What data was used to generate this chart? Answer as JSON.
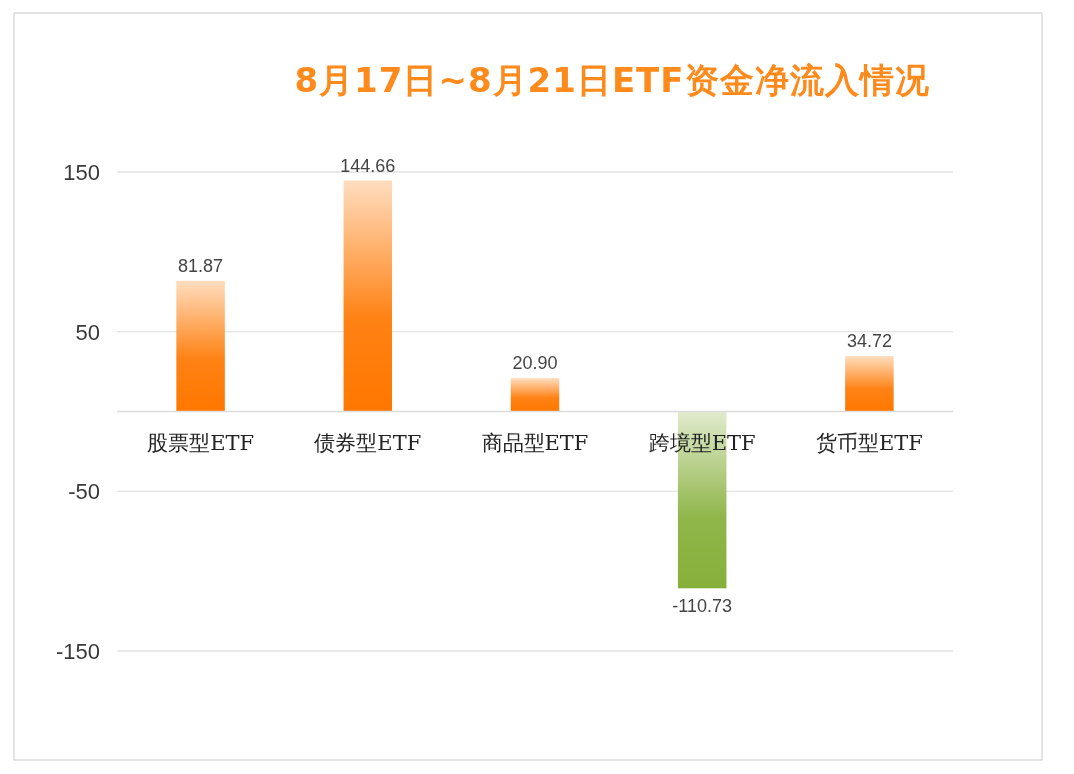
{
  "chart_data": {
    "type": "bar",
    "title": "8月17日~8月21日ETF资金净流入情况",
    "categories": [
      "股票型ETF",
      "债券型ETF",
      "商品型ETF",
      "跨境型ETF",
      "货币型ETF"
    ],
    "values": [
      81.87,
      144.66,
      20.9,
      -110.73,
      34.72
    ],
    "colors": [
      "#ff7700",
      "#ff7700",
      "#ff7700",
      "#86b03a",
      "#ff7700"
    ],
    "value_labels": [
      "81.87",
      "144.66",
      "20.90",
      "-110.73",
      "34.72"
    ],
    "ylim": [
      -150,
      150
    ],
    "yticks": [
      150,
      50,
      -50,
      -150
    ],
    "grid": "y"
  }
}
